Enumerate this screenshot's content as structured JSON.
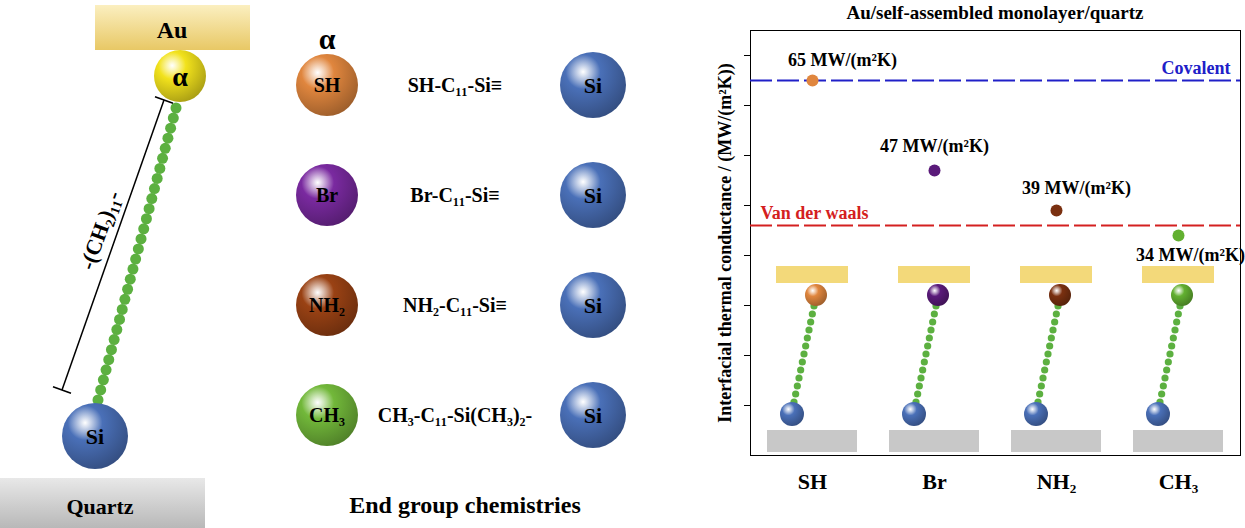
{
  "diagram": {
    "left": {
      "top_label": "Au",
      "end_group": "α",
      "chain_label": "-(CH₂)₁₁-",
      "anchor": "Si",
      "bottom_label": "Quartz"
    },
    "end_groups": {
      "header": "α",
      "items": [
        {
          "label": "SH",
          "formula": "SH-C₁₁-Si≡",
          "anchor": "Si",
          "color": "#e0863e"
        },
        {
          "label": "Br",
          "formula": "Br-C₁₁-Si≡",
          "anchor": "Si",
          "color": "#7a2aa0"
        },
        {
          "label": "NH₂",
          "formula": "NH₂-C₁₁-Si≡",
          "anchor": "Si",
          "color": "#9a4214"
        },
        {
          "label": "CH₃",
          "formula": "CH₃-C₁₁-Si(CH₃)₂-",
          "anchor": "Si",
          "color": "#72b83a"
        }
      ],
      "caption": "End group chemistries"
    }
  },
  "chart_data": {
    "type": "scatter",
    "title": "Au/self-assembled monolayer/quartz",
    "y_label": "Interfacial thermal conductance / (MW/(m²K))",
    "categories": [
      "SH",
      "Br",
      "NH₂",
      "CH₃"
    ],
    "values": [
      65,
      47,
      39,
      34
    ],
    "value_labels": [
      "65 MW/(m²K)",
      "47 MW/(m²K)",
      "39 MW/(m²K)",
      "34 MW/(m²K)"
    ],
    "data_labels": true,
    "colors": [
      "#e0863e",
      "#5a1a7a",
      "#7a3010",
      "#62b030"
    ],
    "marker": "circle",
    "ylim": [
      -10,
      75
    ],
    "yticks": [
      0,
      10,
      20,
      30,
      40,
      50,
      60,
      70
    ],
    "tick_labels": "x",
    "reference_lines": [
      {
        "label": "Covalent",
        "value": 65,
        "color": "#2020c8",
        "line_style": "dashed"
      },
      {
        "label": "Van der waals",
        "value": 36,
        "color": "#d42020",
        "line_style": "dashed"
      }
    ]
  }
}
